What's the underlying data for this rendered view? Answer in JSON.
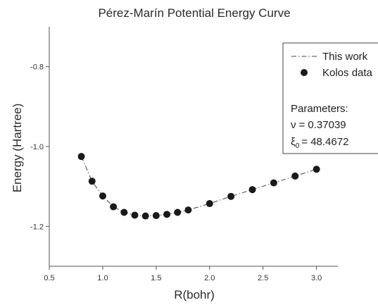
{
  "chart_data": {
    "type": "line",
    "title": "Pérez-Marín Potential Energy Curve",
    "xlabel": "R(bohr)",
    "ylabel": "Energy (Hartree)",
    "xlim": [
      0.5,
      3.2
    ],
    "ylim": [
      -1.3,
      -0.7
    ],
    "xticks": [
      0.5,
      1.0,
      1.5,
      2.0,
      2.5,
      3.0
    ],
    "xtick_labels": [
      "0.5",
      "1.0",
      "1.5",
      "2.0",
      "2.5",
      "3.0"
    ],
    "yticks": [
      -1.2,
      -1.0,
      -0.8
    ],
    "ytick_labels": [
      "-1.2",
      "-1.0",
      "-0.8"
    ],
    "grid": false,
    "legend_position": "top-right",
    "series": [
      {
        "name": "This work",
        "style": "dash-dot line",
        "color": "#444444",
        "x": [
          0.8,
          0.9,
          1.0,
          1.1,
          1.2,
          1.3,
          1.4,
          1.5,
          1.6,
          1.7,
          1.8,
          2.0,
          2.2,
          2.4,
          2.6,
          2.8,
          3.0
        ],
        "y": [
          -1.025,
          -1.087,
          -1.124,
          -1.151,
          -1.165,
          -1.172,
          -1.174,
          -1.173,
          -1.17,
          -1.165,
          -1.159,
          -1.143,
          -1.125,
          -1.108,
          -1.091,
          -1.074,
          -1.057
        ]
      },
      {
        "name": "Kolos data",
        "style": "filled circle markers",
        "color": "#1a1a1a",
        "x": [
          0.8,
          0.9,
          1.0,
          1.1,
          1.2,
          1.3,
          1.4,
          1.5,
          1.6,
          1.7,
          1.8,
          2.0,
          2.2,
          2.4,
          2.6,
          2.8,
          3.0
        ],
        "y": [
          -1.025,
          -1.087,
          -1.124,
          -1.151,
          -1.165,
          -1.172,
          -1.174,
          -1.173,
          -1.17,
          -1.165,
          -1.159,
          -1.143,
          -1.125,
          -1.108,
          -1.091,
          -1.074,
          -1.057
        ]
      }
    ],
    "annotations": {
      "heading": "Parameters:",
      "nu_symbol": "ν",
      "nu_value": "=  0.37039",
      "xi_symbol": "ξ",
      "xi_subscript": "0",
      "xi_value": "= 48.4672"
    }
  }
}
